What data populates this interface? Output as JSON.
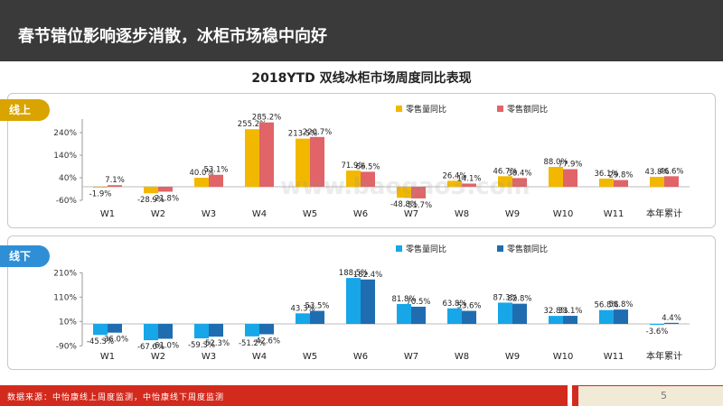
{
  "slide": {
    "title": "春节错位影响逐步消散，冰柜市场稳中向好",
    "page_number": "5",
    "source": "数据来源：中怡康线上周度监测，中怡康线下周度监测",
    "watermark": "www.baogao3.com",
    "colors": {
      "header": "#3a3a3a",
      "accent": "#d32a1e",
      "tab_online": "#d9a300",
      "tab_offline": "#2e8fd6"
    }
  },
  "chart_data": [
    {
      "type": "bar",
      "title": "2018YTD 双线冰柜市场周度同比表现",
      "panel_label": "线上",
      "categories": [
        "W1",
        "W2",
        "W3",
        "W4",
        "W5",
        "W6",
        "W7",
        "W8",
        "W9",
        "W10",
        "W11",
        "本年累计"
      ],
      "ylim": [
        -60,
        300
      ],
      "yticks": [
        -60,
        40,
        140,
        240
      ],
      "ytick_labels": [
        "-60%",
        "40%",
        "140%",
        "240%"
      ],
      "legend_position": "top-right",
      "series": [
        {
          "name": "零售量同比",
          "color": "#f2b800",
          "values": [
            -1.9,
            -28.9,
            40.0,
            255.2,
            213.5,
            71.9,
            -48.8,
            26.4,
            46.7,
            88.0,
            36.1,
            43.8
          ],
          "labels": [
            "-1.9%",
            "-28.9%",
            "40.0%",
            "255.2%",
            "213.5%",
            "71.9%",
            "-48.8%",
            "26.4%",
            "46.7%",
            "88.0%",
            "36.1%",
            "43.8%"
          ]
        },
        {
          "name": "零售额同比",
          "color": "#e06468",
          "values": [
            7.1,
            -21.8,
            53.1,
            285.2,
            220.7,
            66.5,
            -51.7,
            14.1,
            38.4,
            77.9,
            29.8,
            46.6
          ],
          "labels": [
            "7.1%",
            "-21.8%",
            "53.1%",
            "285.2%",
            "220.7%",
            "66.5%",
            "-51.7%",
            "14.1%",
            "38.4%",
            "77.9%",
            "29.8%",
            "46.6%"
          ]
        }
      ]
    },
    {
      "type": "bar",
      "panel_label": "线下",
      "categories": [
        "W1",
        "W2",
        "W3",
        "W4",
        "W5",
        "W6",
        "W7",
        "W8",
        "W9",
        "W10",
        "W11",
        "本年累计"
      ],
      "ylim": [
        -90,
        210
      ],
      "yticks": [
        -90,
        10,
        110,
        210
      ],
      "ytick_labels": [
        "-90%",
        "10%",
        "110%",
        "210%"
      ],
      "legend_position": "top-right",
      "series": [
        {
          "name": "零售量同比",
          "color": "#17a6e8",
          "values": [
            -45.3,
            -67.0,
            -59.3,
            -51.2,
            43.3,
            188.5,
            81.8,
            63.8,
            87.3,
            32.8,
            56.8,
            -3.6
          ],
          "labels": [
            "-45.3%",
            "-67.0%",
            "-59.3%",
            "-51.2%",
            "43.3%",
            "188.5%",
            "81.8%",
            "63.8%",
            "87.3%",
            "32.8%",
            "56.8%",
            "-3.6%"
          ]
        },
        {
          "name": "零售额同比",
          "color": "#1f6db0",
          "values": [
            -36.0,
            -61.0,
            -52.3,
            -42.6,
            53.5,
            182.4,
            70.5,
            53.6,
            82.8,
            33.1,
            58.8,
            4.4
          ],
          "labels": [
            "-36.0%",
            "-61.0%",
            "-52.3%",
            "-42.6%",
            "53.5%",
            "182.4%",
            "70.5%",
            "53.6%",
            "82.8%",
            "33.1%",
            "58.8%",
            "4.4%"
          ]
        }
      ]
    }
  ]
}
